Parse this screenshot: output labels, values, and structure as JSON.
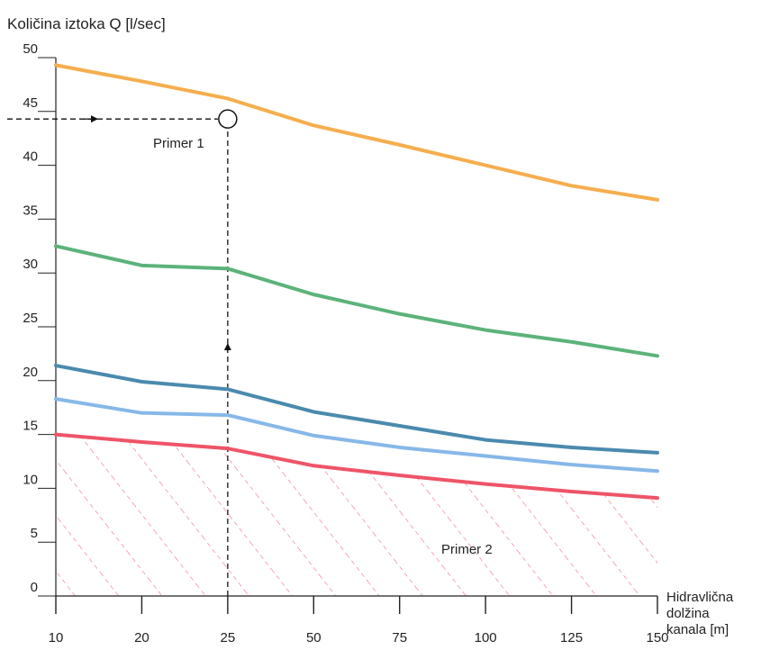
{
  "chart_data": {
    "type": "line",
    "ylabel": "Količina iztoka Q [l/sec]",
    "xlabel_lines": [
      "Hidravlična",
      "dolžina",
      "kanala [m]"
    ],
    "categories": [
      "10",
      "20",
      "25",
      "50",
      "75",
      "100",
      "125",
      "150"
    ],
    "yticks": [
      0,
      5,
      10,
      15,
      20,
      25,
      30,
      35,
      40,
      45,
      50
    ],
    "ylim": [
      0,
      50
    ],
    "grid": false,
    "series": [
      {
        "color": "#f5ae4e",
        "values": [
          49.3,
          47.8,
          46.2,
          43.7,
          41.9,
          40.0,
          38.1,
          36.8
        ]
      },
      {
        "color": "#5cb37a",
        "values": [
          32.5,
          30.7,
          30.4,
          28.0,
          26.2,
          24.7,
          23.6,
          22.3
        ]
      },
      {
        "color": "#4a8aae",
        "values": [
          21.4,
          19.9,
          19.2,
          17.1,
          15.8,
          14.5,
          13.8,
          13.3
        ]
      },
      {
        "color": "#86b8e8",
        "values": [
          18.3,
          17.0,
          16.8,
          14.9,
          13.8,
          13.0,
          12.2,
          11.6
        ]
      },
      {
        "color": "#ee5468",
        "values": [
          15.0,
          14.3,
          13.7,
          12.1,
          11.2,
          10.4,
          9.7,
          9.1
        ]
      }
    ],
    "hatch_color": "#ee5468",
    "annotations": [
      {
        "label": "Primer 1",
        "x": "25",
        "y": 44.3
      },
      {
        "label": "Primer 2"
      }
    ]
  }
}
